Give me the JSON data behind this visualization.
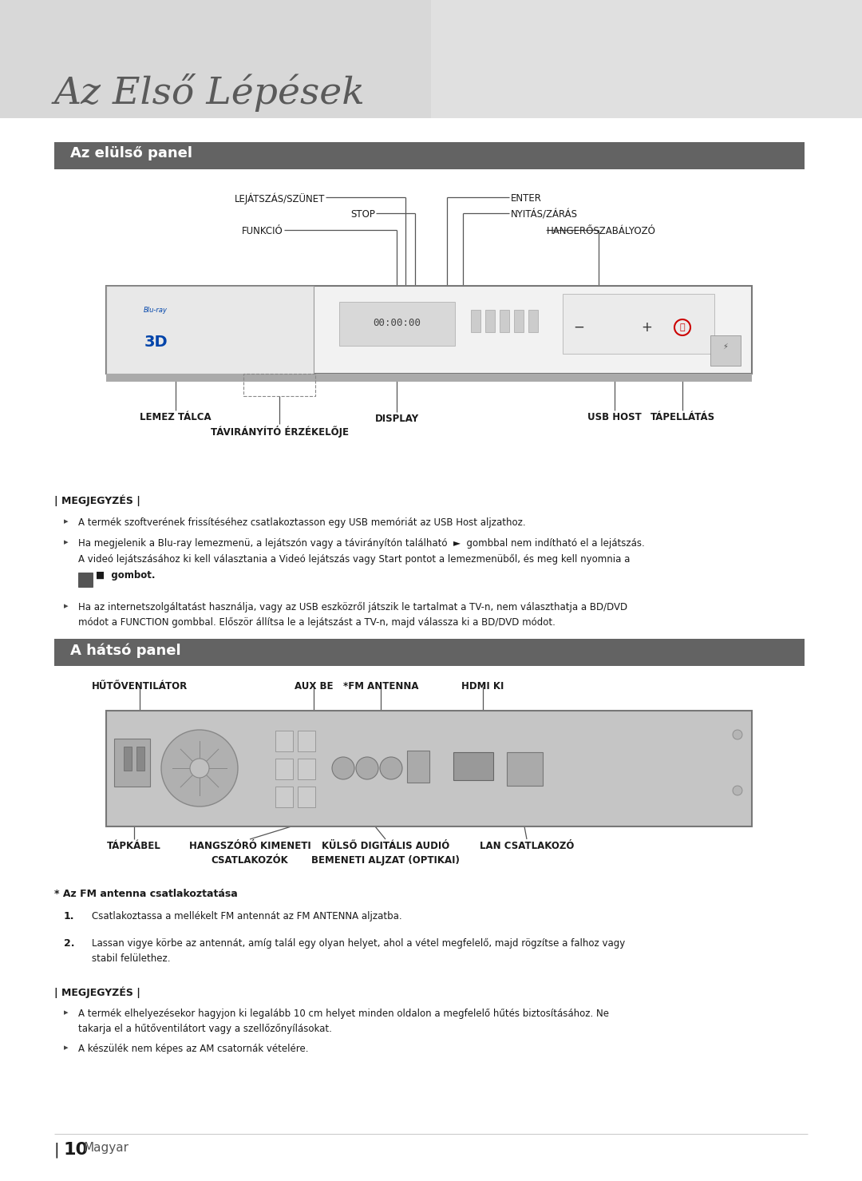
{
  "title": "Az Első Lépések",
  "section1": "Az elülső panel",
  "section2": "A hátsó panel",
  "bg_color": "#ffffff",
  "section_bg": "#636363",
  "note1_title": "| MEGJEGYZÉS |",
  "note1_b1": "A termék szoftverének frissítéséhez csatlakoztasson egy USB memóriát az USB Host aljzathoz.",
  "note1_b2a": "Ha megjelenik a Blu-ray lemezmenü, a lejátszón vagy a távirányítón található  ►  gombbal nem indítható el a lejátszás.",
  "note1_b2b": "A videó lejátszásához ki kell választania a Videó lejátszás vagy Start pontot a lemezmenüből, és meg kell nyomnia a",
  "note1_b2c": "■  gombot.",
  "note1_b3a": "Ha az internetszolgáltatást használja, vagy az USB eszközről játszik le tartalmat a TV-n, nem választhatja a BD/DVD",
  "note1_b3b": "módot a FUNCTION gombbal. Először állítsa le a lejátszást a TV-n, majd válassza ki a BD/DVD módot.",
  "note2_title": "| MEGJEGYZÉS |",
  "note2_b1a": "A termék elhelyezésekor hagyjon ki legalább 10 cm helyet minden oldalon a megfelelő hűtés biztosításához. Ne",
  "note2_b1b": "takarja el a hűtőventilátort vagy a szellőzőnyílásokat.",
  "note2_b2": "A készülék nem képes az AM csatornák vételére.",
  "fm_title": "* Az FM antenna csatlakoztatása",
  "fm_step1": "Csatlakoztassa a mellékelt FM antennát az FM ANTENNA aljzatba.",
  "fm_step2a": "Lassan vigye körbe az antennát, amíg talál egy olyan helyet, ahol a vétel megfelelő, majd rögzítse a falhoz vagy",
  "fm_step2b": "stabil felülethez.",
  "page_num": "10",
  "page_lang": "Magyar"
}
